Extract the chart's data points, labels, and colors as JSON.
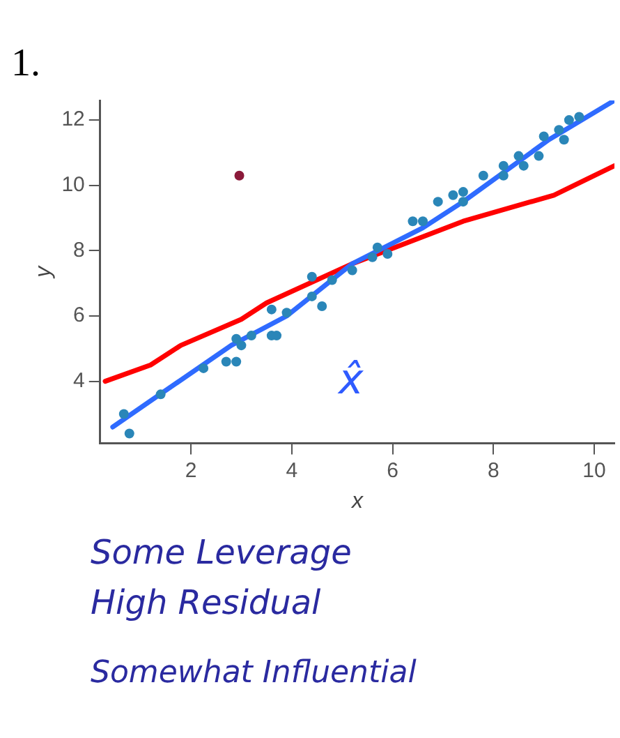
{
  "chart_data": {
    "type": "scatter",
    "xlabel": "x",
    "ylabel": "y",
    "xlim": [
      0.2,
      10.4
    ],
    "ylim": [
      2.1,
      12.6
    ],
    "xticks": [
      2,
      4,
      6,
      8,
      10
    ],
    "yticks": [
      4,
      6,
      8,
      10,
      12
    ],
    "grid": false,
    "legend": false,
    "marker": "circle",
    "annotations": [
      "1.",
      "x̂",
      "Some Leverage",
      "High Residual",
      "Somewhat Influential"
    ],
    "series": [
      {
        "type": "scatter",
        "color": "#2a86b8",
        "x": [
          0.67,
          0.78,
          1.4,
          2.25,
          2.7,
          2.9,
          2.9,
          3.0,
          3.2,
          3.6,
          3.6,
          3.9,
          3.7,
          4.4,
          4.4,
          4.6,
          4.8,
          5.2,
          5.6,
          5.7,
          5.9,
          6.4,
          6.6,
          6.9,
          7.2,
          7.4,
          7.4,
          7.8,
          8.2,
          8.2,
          8.5,
          8.6,
          8.9,
          9.0,
          9.3,
          9.4,
          9.5,
          9.7
        ],
        "values": [
          3.0,
          2.4,
          3.6,
          4.4,
          4.6,
          4.6,
          5.3,
          5.1,
          5.4,
          5.4,
          6.2,
          6.1,
          5.4,
          6.6,
          7.2,
          6.3,
          7.1,
          7.4,
          7.8,
          8.1,
          7.9,
          8.9,
          8.9,
          9.5,
          9.7,
          9.8,
          9.5,
          10.3,
          10.3,
          10.6,
          10.9,
          10.6,
          10.9,
          11.5,
          11.7,
          11.4,
          12.0,
          12.1
        ]
      },
      {
        "type": "scatter",
        "color": "#8b1a3a",
        "x": [
          2.96
        ],
        "values": [
          10.3
        ]
      },
      {
        "type": "line",
        "color": "#2f6bff",
        "marker": "none",
        "x": [
          0.45,
          1.2,
          2.8,
          3.9,
          5.2,
          6.6,
          7.4,
          9.1,
          10.4
        ],
        "values": [
          2.6,
          3.4,
          5.1,
          6.0,
          7.6,
          8.7,
          9.5,
          11.4,
          12.6
        ]
      },
      {
        "type": "line",
        "color": "#ff0000",
        "marker": "none",
        "x": [
          0.3,
          1.2,
          1.8,
          3.0,
          3.5,
          5.2,
          7.4,
          9.2,
          10.4
        ],
        "values": [
          4.0,
          4.5,
          5.1,
          5.9,
          6.4,
          7.6,
          8.9,
          9.7,
          10.6
        ]
      }
    ]
  }
}
